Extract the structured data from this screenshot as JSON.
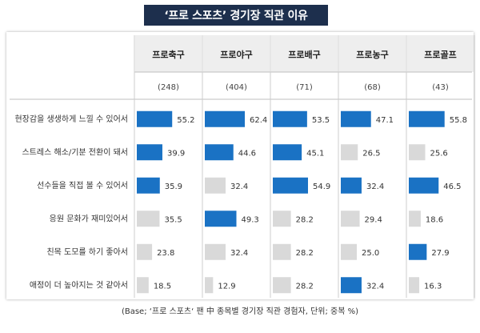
{
  "chart_data": {
    "type": "bar",
    "title": "‘프로 스포츠’ 경기장 직관 이유",
    "footnote": "(Base; ‘프로 스포츠‘ 팬 中 종목별 경기장 직관 경험자, 단위; 중복 %)",
    "categories": [
      "현장감을 생생하게 느낄 수 있어서",
      "스트레스 해소/기분 전환이 돼서",
      "선수들을 직접 볼 수 있어서",
      "응원 문화가 재미있어서",
      "친목 도모를 하기 좋아서",
      "애정이 더 높아지는 것 같아서"
    ],
    "series": [
      {
        "name": "프로축구",
        "base": "(248)",
        "values": [
          55.2,
          39.9,
          35.9,
          35.5,
          23.8,
          18.5
        ],
        "highlight": [
          true,
          true,
          true,
          false,
          false,
          false
        ]
      },
      {
        "name": "프로야구",
        "base": "(404)",
        "values": [
          62.4,
          44.6,
          32.4,
          49.3,
          32.4,
          12.9
        ],
        "highlight": [
          true,
          true,
          false,
          true,
          false,
          false
        ]
      },
      {
        "name": "프로배구",
        "base": "(71)",
        "values": [
          53.5,
          45.1,
          54.9,
          28.2,
          28.2,
          28.2
        ],
        "highlight": [
          true,
          true,
          true,
          false,
          false,
          false
        ]
      },
      {
        "name": "프로농구",
        "base": "(68)",
        "values": [
          47.1,
          26.5,
          32.4,
          29.4,
          25.0,
          32.4
        ],
        "highlight": [
          true,
          false,
          true,
          false,
          false,
          true
        ]
      },
      {
        "name": "프로골프",
        "base": "(43)",
        "values": [
          55.8,
          25.6,
          46.5,
          18.6,
          27.9,
          16.3
        ],
        "highlight": [
          true,
          false,
          true,
          false,
          true,
          false
        ]
      }
    ],
    "value_labels": [
      [
        "55.2",
        "39.9",
        "35.9",
        "35.5",
        "23.8",
        "18.5"
      ],
      [
        "62.4",
        "44.6",
        "32.4",
        "49.3",
        "32.4",
        "12.9"
      ],
      [
        "53.5",
        "45.1",
        "54.9",
        "28.2",
        "28.2",
        "28.2"
      ],
      [
        "47.1",
        "26.5",
        "32.4",
        "29.4",
        "25.0",
        "32.4"
      ],
      [
        "55.8",
        "25.6",
        "46.5",
        "18.6",
        "27.9",
        "16.3"
      ]
    ],
    "colors": {
      "highlight": "#1a72c4",
      "normal": "#d9d9d9",
      "title_bg": "#1d2f4d"
    }
  }
}
